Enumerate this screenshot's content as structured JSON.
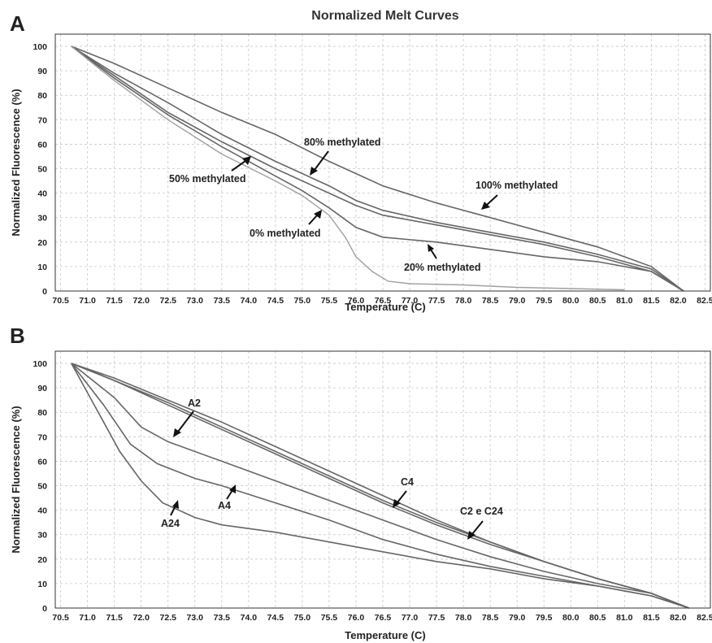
{
  "title": "Normalized Melt Curves",
  "panels": [
    "A",
    "B"
  ],
  "chart_data": [
    {
      "type": "line",
      "panel": "A",
      "xlabel": "Temperature (C)",
      "ylabel": "Normalized Fluorescence (%)",
      "xlim": [
        70.4,
        82.6
      ],
      "ylim": [
        0,
        105
      ],
      "xticks": [
        "70.5",
        "71.0",
        "71.5",
        "72.0",
        "72.5",
        "73.0",
        "73.5",
        "74.0",
        "74.5",
        "75.0",
        "75.5",
        "76.0",
        "76.5",
        "77.0",
        "77.5",
        "78.0",
        "78.5",
        "79.0",
        "79.5",
        "80.0",
        "80.5",
        "81.0",
        "81.5",
        "82.0",
        "82.5"
      ],
      "yticks": [
        "0",
        "10",
        "20",
        "30",
        "40",
        "50",
        "60",
        "70",
        "80",
        "90",
        "100"
      ],
      "grid": true,
      "series": [
        {
          "name": "100% methylated",
          "x": [
            70.7,
            71.5,
            72.5,
            73.5,
            74.5,
            75.5,
            76.5,
            77.5,
            78.5,
            79.5,
            80.5,
            81.0,
            81.5,
            82.1
          ],
          "y": [
            100,
            93,
            83,
            73,
            64,
            53,
            43,
            36,
            30,
            24,
            18,
            14,
            10,
            0
          ]
        },
        {
          "name": "80% methylated",
          "x": [
            70.7,
            71.5,
            72.5,
            73.5,
            74.5,
            75.5,
            76.0,
            76.5,
            77.5,
            78.5,
            79.5,
            80.5,
            81.5,
            82.1
          ],
          "y": [
            100,
            89,
            77,
            64,
            53,
            43,
            37,
            33,
            28,
            24,
            20,
            15,
            9,
            0
          ]
        },
        {
          "name": "50% methylated",
          "x": [
            70.7,
            71.5,
            72.5,
            73.5,
            74.5,
            75.5,
            76.0,
            76.5,
            77.5,
            78.5,
            79.5,
            80.5,
            81.5,
            82.1
          ],
          "y": [
            100,
            88,
            73,
            61,
            50,
            40,
            35,
            31,
            27,
            23,
            19,
            14,
            8,
            0
          ]
        },
        {
          "name": "20% methylated",
          "x": [
            70.7,
            71.5,
            72.5,
            73.5,
            74.5,
            75.0,
            75.5,
            76.0,
            76.5,
            77.5,
            78.5,
            79.5,
            80.5,
            81.5,
            82.1
          ],
          "y": [
            100,
            87,
            72,
            59,
            47,
            41,
            34,
            26,
            22,
            20,
            17,
            14,
            12,
            8,
            0
          ]
        },
        {
          "name": "0% methylated",
          "x": [
            70.7,
            71.5,
            72.5,
            73.5,
            74.5,
            75.0,
            75.5,
            75.8,
            76.0,
            76.3,
            76.6,
            77.0,
            78.0,
            79.0,
            80.0,
            81.0
          ],
          "y": [
            100,
            86,
            70,
            56,
            45,
            39,
            31,
            22,
            14,
            8,
            4,
            3,
            2.5,
            1.5,
            1,
            0.5
          ]
        }
      ],
      "annotations": [
        "80% methylated",
        "50% methylated",
        "100% methylated",
        "0% methylated",
        "20% methylated"
      ]
    },
    {
      "type": "line",
      "panel": "B",
      "xlabel": "Temperature (C)",
      "ylabel": "Normalized Fluorescence (%)",
      "xlim": [
        70.4,
        82.6
      ],
      "ylim": [
        0,
        105
      ],
      "xticks": [
        "70.5",
        "71.0",
        "71.5",
        "72.0",
        "72.5",
        "73.0",
        "73.5",
        "74.0",
        "74.5",
        "75.0",
        "75.5",
        "76.0",
        "76.5",
        "77.0",
        "77.5",
        "78.0",
        "78.5",
        "79.0",
        "79.5",
        "80.0",
        "80.5",
        "81.0",
        "81.5",
        "82.0",
        "82.5"
      ],
      "yticks": [
        "0",
        "10",
        "20",
        "30",
        "40",
        "50",
        "60",
        "70",
        "80",
        "90",
        "100"
      ],
      "grid": true,
      "series": [
        {
          "name": "C4",
          "x": [
            70.7,
            71.5,
            72.5,
            73.5,
            74.5,
            75.5,
            76.5,
            77.5,
            78.5,
            79.5,
            80.5,
            81.5,
            82.2
          ],
          "y": [
            100,
            94,
            85,
            76,
            66,
            56,
            46,
            36,
            27,
            19,
            12,
            6,
            0
          ]
        },
        {
          "name": "C2",
          "x": [
            70.7,
            71.5,
            72.5,
            73.5,
            74.5,
            75.5,
            76.5,
            77.5,
            78.5,
            79.5,
            80.5,
            81.5,
            82.2
          ],
          "y": [
            100,
            93,
            84,
            74,
            64,
            54,
            44,
            35,
            27,
            19,
            12,
            6,
            0
          ]
        },
        {
          "name": "C24",
          "x": [
            70.7,
            71.5,
            72.5,
            73.5,
            74.5,
            75.5,
            76.5,
            77.5,
            78.5,
            79.5,
            80.5,
            81.5,
            82.2
          ],
          "y": [
            100,
            93,
            83,
            73,
            63,
            53,
            43,
            34,
            26,
            19,
            12,
            6,
            0
          ]
        },
        {
          "name": "A2",
          "x": [
            70.7,
            71.5,
            72.0,
            72.5,
            73.5,
            74.5,
            75.5,
            76.5,
            77.5,
            78.5,
            79.5,
            80.5,
            81.5,
            82.2
          ],
          "y": [
            100,
            86,
            74,
            68,
            60,
            52,
            44,
            36,
            28,
            21,
            15,
            10,
            6,
            0
          ]
        },
        {
          "name": "A4",
          "x": [
            70.7,
            71.3,
            71.8,
            72.3,
            73.0,
            73.5,
            74.5,
            75.5,
            76.5,
            77.5,
            78.5,
            79.5,
            80.5,
            81.5,
            82.2
          ],
          "y": [
            100,
            83,
            67,
            59,
            53,
            50,
            43,
            36,
            28,
            22,
            17,
            13,
            9,
            5,
            0
          ]
        },
        {
          "name": "A24",
          "x": [
            70.7,
            71.2,
            71.6,
            72.0,
            72.4,
            73.0,
            73.5,
            74.5,
            75.5,
            76.5,
            77.5,
            78.5,
            79.5,
            80.5,
            81.5,
            82.2
          ],
          "y": [
            100,
            80,
            64,
            52,
            43,
            37,
            34,
            31,
            27,
            23,
            19,
            16,
            12,
            9,
            5,
            0
          ]
        }
      ],
      "annotations": [
        "A2",
        "C4",
        "C2 e C24",
        "A4",
        "A24"
      ]
    }
  ]
}
